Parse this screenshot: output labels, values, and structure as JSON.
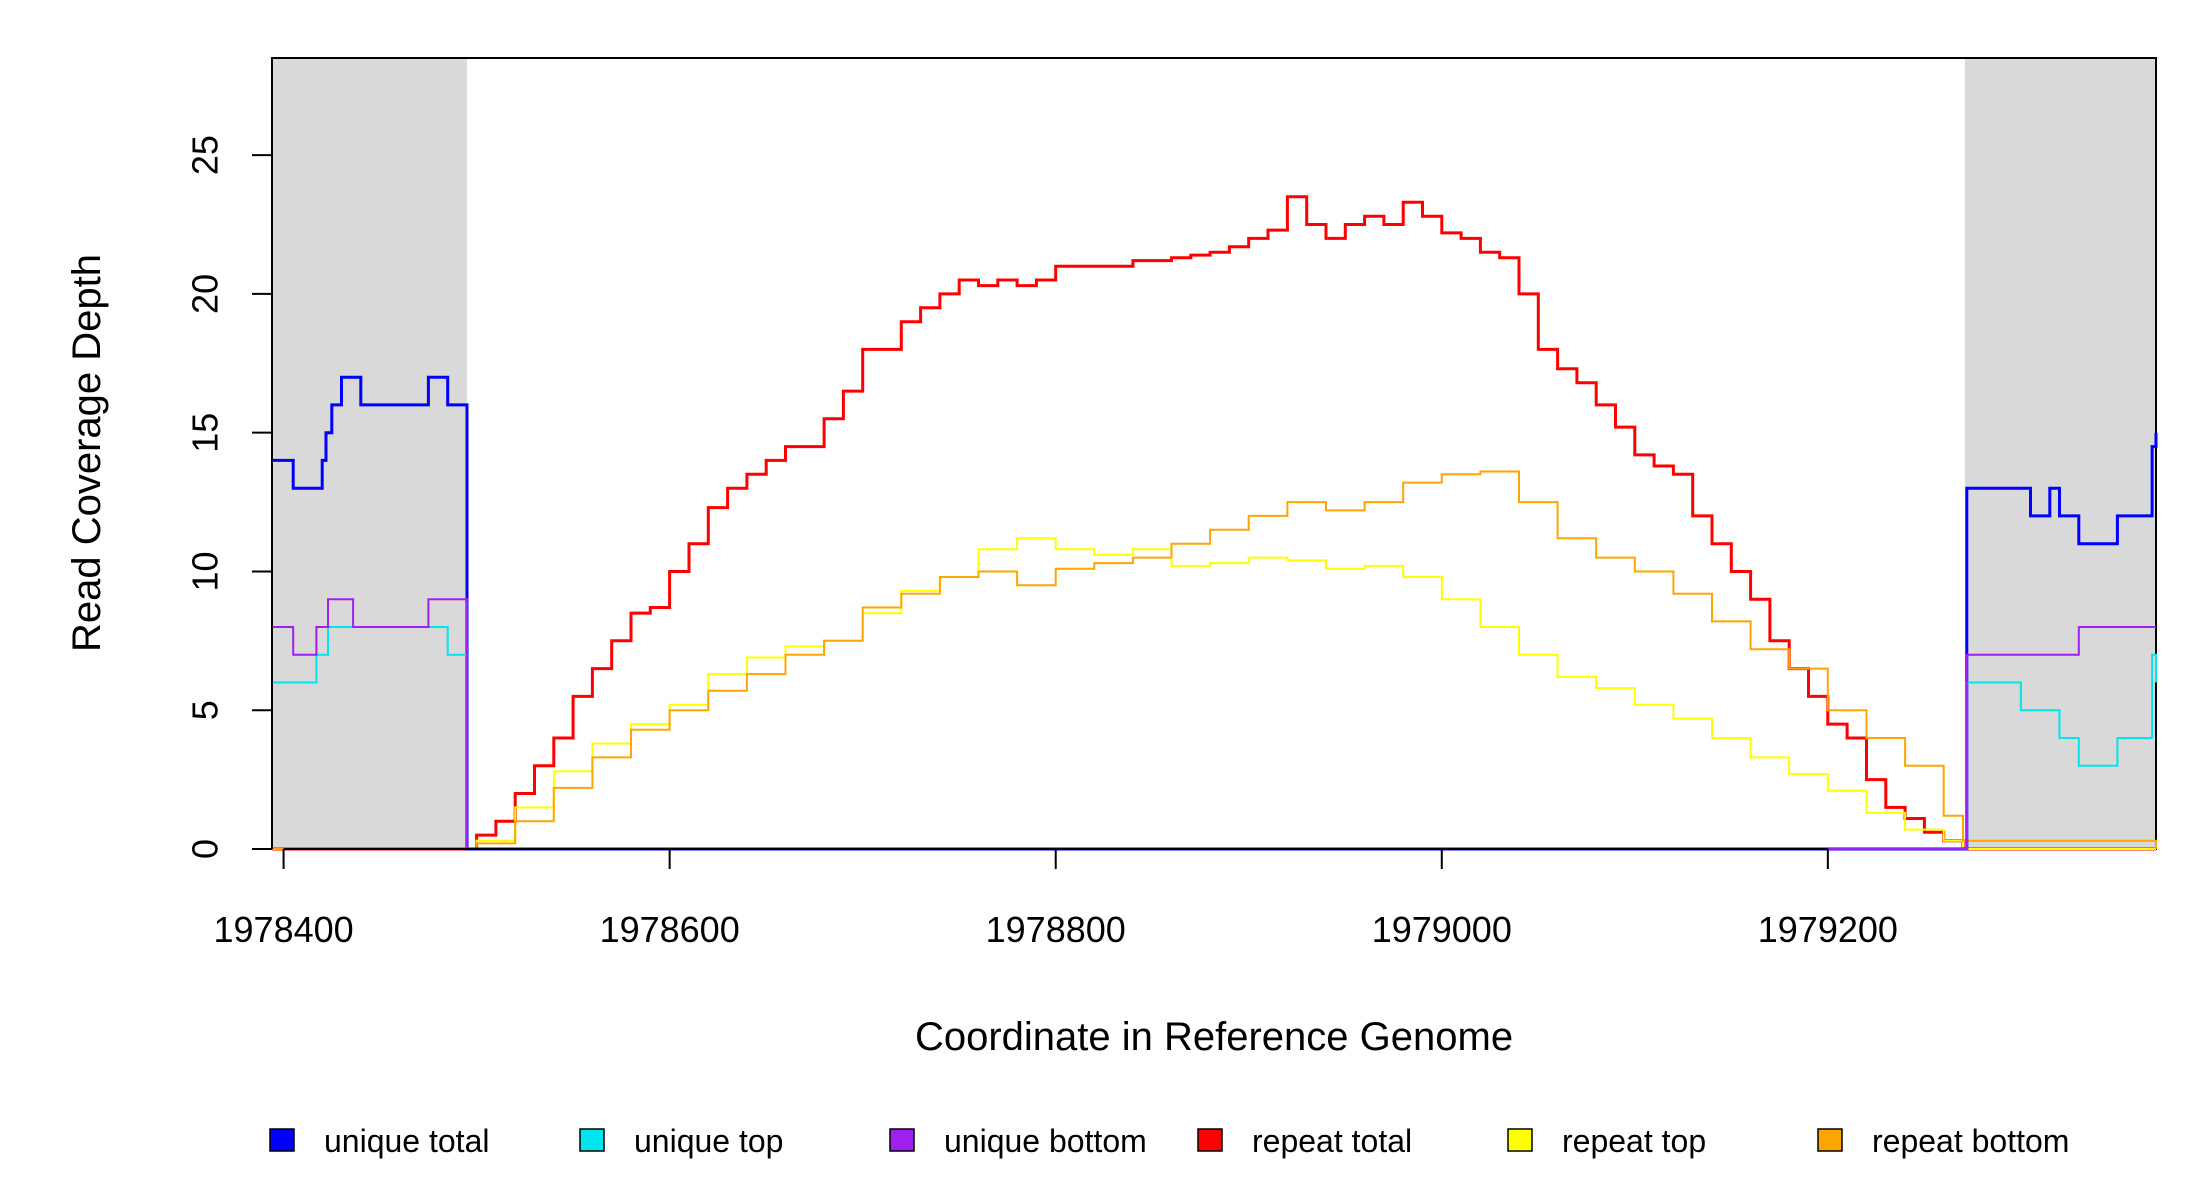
{
  "chart_data": {
    "type": "line",
    "title": "",
    "xlabel": "Coordinate in Reference Genome",
    "ylabel": "Read Coverage Depth",
    "xlim": [
      1978394,
      1979370
    ],
    "ylim": [
      0,
      28.5
    ],
    "x_ticks": [
      1978400,
      1978600,
      1978800,
      1979000,
      1979200
    ],
    "y_ticks": [
      0,
      5,
      10,
      15,
      20,
      25
    ],
    "x_tick_labels": [
      "1978400",
      "1978600",
      "1978800",
      "1979000",
      "1979200"
    ],
    "y_tick_labels": [
      "0",
      "5",
      "10",
      "15",
      "20",
      "25"
    ],
    "grid": false,
    "shaded_regions": [
      {
        "x0": 1978394,
        "x1": 1978495,
        "color": "#d9d9d9"
      },
      {
        "x0": 1979271,
        "x1": 1979370,
        "color": "#d9d9d9"
      }
    ],
    "legend_position": "bottom",
    "legend": [
      {
        "label": "unique total",
        "color": "#0000ff"
      },
      {
        "label": "unique top",
        "color": "#00e5ee"
      },
      {
        "label": "unique bottom",
        "color": "#a020f0"
      },
      {
        "label": "repeat total",
        "color": "#ff0000"
      },
      {
        "label": "repeat top",
        "color": "#ffff00"
      },
      {
        "label": "repeat bottom",
        "color": "#ffa500"
      }
    ],
    "series": [
      {
        "name": "repeat total",
        "color": "#ff0000",
        "width": 3,
        "x": [
          1978394,
          1978495,
          1978500,
          1978510,
          1978520,
          1978530,
          1978540,
          1978550,
          1978560,
          1978570,
          1978580,
          1978590,
          1978600,
          1978610,
          1978620,
          1978630,
          1978640,
          1978650,
          1978660,
          1978670,
          1978680,
          1978690,
          1978700,
          1978710,
          1978720,
          1978730,
          1978740,
          1978750,
          1978760,
          1978770,
          1978780,
          1978790,
          1978800,
          1978810,
          1978820,
          1978830,
          1978840,
          1978850,
          1978860,
          1978870,
          1978880,
          1978890,
          1978900,
          1978910,
          1978920,
          1978930,
          1978940,
          1978950,
          1978960,
          1978970,
          1978980,
          1978990,
          1979000,
          1979010,
          1979020,
          1979030,
          1979040,
          1979050,
          1979060,
          1979070,
          1979080,
          1979090,
          1979100,
          1979110,
          1979120,
          1979130,
          1979140,
          1979150,
          1979160,
          1979170,
          1979180,
          1979190,
          1979200,
          1979210,
          1979220,
          1979230,
          1979240,
          1979250,
          1979260,
          1979270,
          1979370
        ],
        "y": [
          0,
          0,
          0.5,
          1,
          2,
          3,
          4,
          5.5,
          6.5,
          7.5,
          8.5,
          8.7,
          10,
          11,
          12.3,
          13,
          13.5,
          14,
          14.5,
          14.5,
          15.5,
          16.5,
          18,
          18,
          19,
          19.5,
          20,
          20.5,
          20.3,
          20.5,
          20.3,
          20.5,
          21,
          21,
          21,
          21,
          21.2,
          21.2,
          21.3,
          21.4,
          21.5,
          21.7,
          22,
          22.3,
          23.5,
          22.5,
          22,
          22.5,
          22.8,
          22.5,
          23.3,
          22.8,
          22.2,
          22,
          21.5,
          21.3,
          20,
          18,
          17.3,
          16.8,
          16,
          15.2,
          14.2,
          13.8,
          13.5,
          12,
          11,
          10,
          9,
          7.5,
          6.5,
          5.5,
          4.5,
          4,
          2.5,
          1.5,
          1.1,
          0.6,
          0.3,
          0,
          0
        ]
      },
      {
        "name": "repeat top",
        "color": "#ffff00",
        "width": 2,
        "x": [
          1978394,
          1978495,
          1978500,
          1978520,
          1978540,
          1978560,
          1978580,
          1978600,
          1978620,
          1978640,
          1978660,
          1978680,
          1978700,
          1978720,
          1978740,
          1978760,
          1978780,
          1978800,
          1978820,
          1978840,
          1978860,
          1978880,
          1978900,
          1978920,
          1978940,
          1978960,
          1978980,
          1979000,
          1979020,
          1979040,
          1979060,
          1979080,
          1979100,
          1979120,
          1979140,
          1979160,
          1979180,
          1979200,
          1979220,
          1979240,
          1979260,
          1979270,
          1979370
        ],
        "y": [
          0,
          0,
          0.3,
          1.5,
          2.8,
          3.8,
          4.5,
          5.2,
          6.3,
          6.9,
          7.3,
          7.5,
          8.5,
          9.3,
          9.8,
          10.8,
          11.2,
          10.8,
          10.6,
          10.8,
          10.2,
          10.3,
          10.5,
          10.4,
          10.1,
          10.2,
          9.8,
          9,
          8,
          7,
          6.2,
          5.8,
          5.2,
          4.7,
          4,
          3.3,
          2.7,
          2.1,
          1.3,
          0.7,
          0.3,
          0,
          0
        ]
      },
      {
        "name": "repeat bottom",
        "color": "#ffa500",
        "width": 2,
        "x": [
          1978394,
          1978495,
          1978500,
          1978520,
          1978540,
          1978560,
          1978580,
          1978600,
          1978620,
          1978640,
          1978660,
          1978680,
          1978700,
          1978720,
          1978740,
          1978760,
          1978780,
          1978800,
          1978820,
          1978840,
          1978860,
          1978880,
          1978900,
          1978920,
          1978940,
          1978960,
          1978980,
          1979000,
          1979020,
          1979040,
          1979060,
          1979080,
          1979100,
          1979120,
          1979140,
          1979160,
          1979180,
          1979200,
          1979220,
          1979240,
          1979260,
          1979270,
          1979370
        ],
        "y": [
          0,
          0,
          0.2,
          1,
          2.2,
          3.3,
          4.3,
          5,
          5.7,
          6.3,
          7,
          7.5,
          8.7,
          9.2,
          9.8,
          10,
          9.5,
          10.1,
          10.3,
          10.5,
          11,
          11.5,
          12,
          12.5,
          12.2,
          12.5,
          13.2,
          13.5,
          13.6,
          12.5,
          11.2,
          10.5,
          10,
          9.2,
          8.2,
          7.2,
          6.5,
          5,
          4,
          3,
          1.2,
          0.3,
          0
        ]
      },
      {
        "name": "unique total",
        "color": "#0000ff",
        "width": 3,
        "x": [
          1978394,
          1978400,
          1978405,
          1978410,
          1978420,
          1978422,
          1978425,
          1978430,
          1978440,
          1978450,
          1978470,
          1978475,
          1978480,
          1978485,
          1978494,
          1978495,
          1979271,
          1979272,
          1979300,
          1979305,
          1979310,
          1979315,
          1979320,
          1979330,
          1979340,
          1979350,
          1979360,
          1979365,
          1979368,
          1979370
        ],
        "y": [
          14,
          14,
          13,
          13,
          14,
          15,
          16,
          17,
          16,
          16,
          16,
          17,
          17,
          16,
          16,
          0,
          0,
          13,
          13,
          12,
          12,
          13,
          12,
          11,
          11,
          12,
          12,
          12,
          14.5,
          15
        ],
        "steps": true
      },
      {
        "name": "unique top",
        "color": "#00e5ee",
        "width": 2,
        "x": [
          1978394,
          1978417,
          1978423,
          1978440,
          1978480,
          1978485,
          1978494,
          1978495,
          1979271,
          1979272,
          1979300,
          1979315,
          1979320,
          1979330,
          1979340,
          1979350,
          1979365,
          1979368,
          1979370
        ],
        "y": [
          6,
          7,
          8,
          8,
          8,
          7,
          7,
          0,
          0,
          6,
          5,
          5,
          4,
          3,
          3,
          4,
          4,
          7,
          6
        ],
        "steps": true
      },
      {
        "name": "unique bottom",
        "color": "#a020f0",
        "width": 2,
        "x": [
          1978394,
          1978405,
          1978417,
          1978423,
          1978436,
          1978475,
          1978494,
          1978495,
          1979271,
          1979272,
          1979330,
          1979370
        ],
        "y": [
          8,
          7,
          8,
          9,
          8,
          9,
          9,
          0,
          0,
          7,
          8,
          8
        ],
        "steps": true
      }
    ]
  }
}
